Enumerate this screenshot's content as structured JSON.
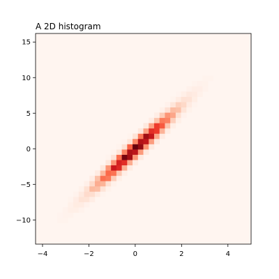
{
  "chart_data": {
    "type": "heatmap",
    "title": "A 2D histogram",
    "xlabel": "",
    "ylabel": "",
    "xlim": [
      -4.3,
      5.0
    ],
    "ylim": [
      -13.4,
      16.2
    ],
    "x_ticks": [
      -4,
      -2,
      0,
      2,
      4
    ],
    "y_ticks": [
      -10,
      -5,
      0,
      5,
      10,
      15
    ],
    "x_tick_labels": [
      "−4",
      "−2",
      "0",
      "2",
      "4"
    ],
    "y_tick_labels": [
      "−10",
      "−5",
      "0",
      "5",
      "10",
      "15"
    ],
    "bins": 40,
    "colormap": "Reds",
    "grid": false,
    "density": {
      "mean": [
        0.0,
        0.0
      ],
      "std_x": 1.0,
      "std_y": 3.1,
      "correlation": 0.97
    },
    "colors": {
      "background": "#fff5f0",
      "low": "#fee0d2",
      "mid": "#fb6a4a",
      "high": "#67000d"
    }
  }
}
